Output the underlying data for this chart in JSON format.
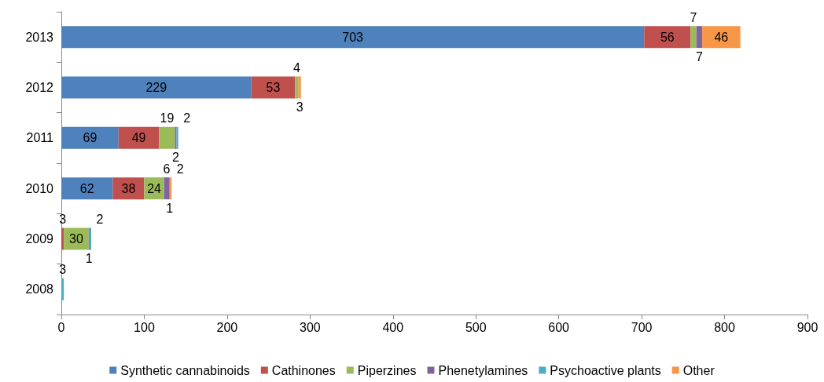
{
  "chart_data": {
    "type": "bar",
    "orientation": "horizontal",
    "stacked": true,
    "data_labels": true,
    "grid": false,
    "legend": "bottom",
    "categories": [
      "2013",
      "2012",
      "2011",
      "2010",
      "2009",
      "2008"
    ],
    "xlim": [
      0,
      900
    ],
    "xticks": [
      0,
      100,
      200,
      300,
      400,
      500,
      600,
      700,
      800,
      900
    ],
    "series": [
      {
        "name": "Synthetic cannabinoids",
        "color": "#4f81bd",
        "values": [
          703,
          229,
          69,
          62,
          null,
          null
        ]
      },
      {
        "name": "Cathinones",
        "color": "#c0504d",
        "values": [
          56,
          53,
          49,
          38,
          3,
          null
        ]
      },
      {
        "name": "Piperzines",
        "color": "#9bbb59",
        "values": [
          7,
          4,
          19,
          24,
          30,
          null
        ]
      },
      {
        "name": "Phenetylamines",
        "color": "#8064a2",
        "values": [
          7,
          null,
          2,
          6,
          1,
          null
        ]
      },
      {
        "name": "Psychoactive plants",
        "color": "#4bacc6",
        "values": [
          null,
          null,
          2,
          1,
          2,
          3
        ]
      },
      {
        "name": "Other",
        "color": "#f79646",
        "values": [
          46,
          3,
          null,
          2,
          null,
          null
        ]
      }
    ]
  }
}
